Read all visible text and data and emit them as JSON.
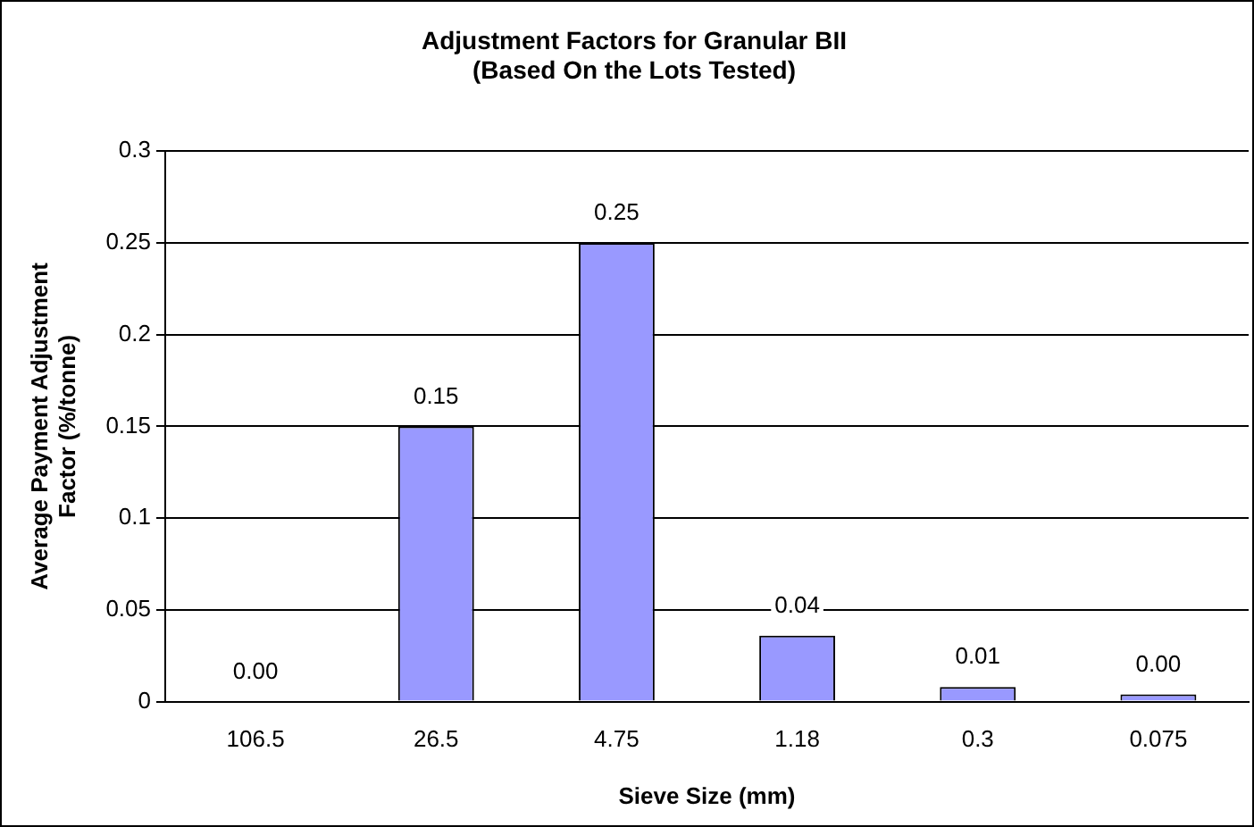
{
  "chart_data": {
    "type": "bar",
    "title": "Adjustment Factors for Granular BII\n(Based On the Lots Tested)",
    "xlabel": "Sieve Size (mm)",
    "ylabel": "Average Payment Adjustment\nFactor (%/tonne)",
    "categories": [
      "106.5",
      "26.5",
      "4.75",
      "1.18",
      "0.3",
      "0.075"
    ],
    "values": [
      0,
      0.15,
      0.25,
      0.036,
      0.008,
      0.004
    ],
    "value_labels": [
      "0.00",
      "0.15",
      "0.25",
      "0.04",
      "0.01",
      "0.00"
    ],
    "color": "#9999ff",
    "ylim": [
      0,
      0.3
    ],
    "yticks": [
      0,
      0.05,
      0.1,
      0.15,
      0.2,
      0.25,
      0.3
    ],
    "grid": "y"
  }
}
